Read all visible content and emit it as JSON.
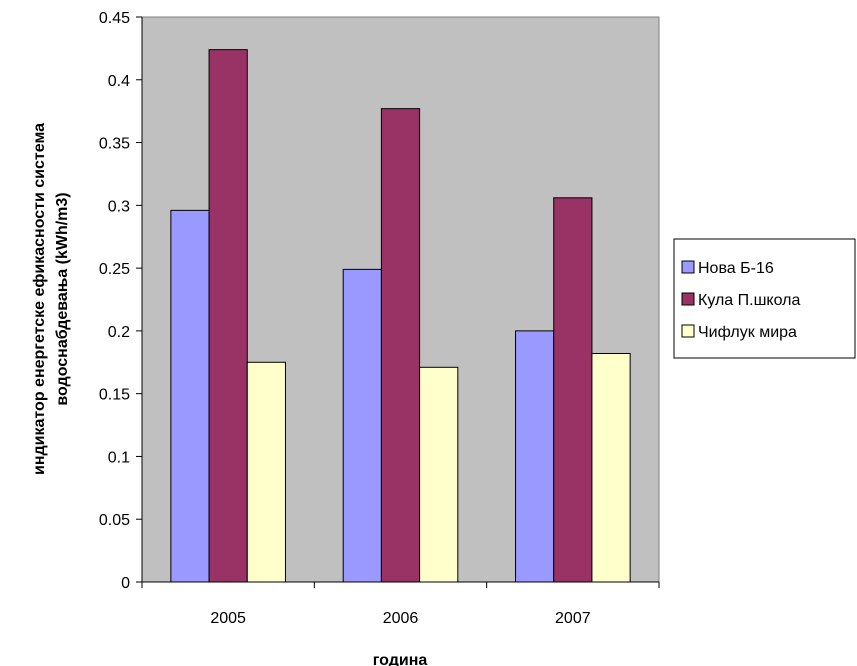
{
  "chart_data": {
    "type": "bar",
    "categories": [
      "2005",
      "2006",
      "2007"
    ],
    "series": [
      {
        "name": "Нова Б-16",
        "values": [
          0.296,
          0.249,
          0.2
        ],
        "color": "#9999ff"
      },
      {
        "name": "Кула П.школа",
        "values": [
          0.424,
          0.377,
          0.306
        ],
        "color": "#993366"
      },
      {
        "name": "Чифлук мира",
        "values": [
          0.175,
          0.171,
          0.182
        ],
        "color": "#ffffcc"
      }
    ],
    "xlabel": "година",
    "ylabel_lines": [
      "индикатор енергетске ефикасности система",
      "водоснабдевања (kWh/m3)"
    ],
    "ylim": [
      0,
      0.45
    ],
    "yticks": [
      "0",
      "0.05",
      "0.1",
      "0.15",
      "0.2",
      "0.25",
      "0.3",
      "0.35",
      "0.4",
      "0.45"
    ],
    "plot_background": "#c0c0c0",
    "gridlines": false,
    "legend_position": "right"
  }
}
